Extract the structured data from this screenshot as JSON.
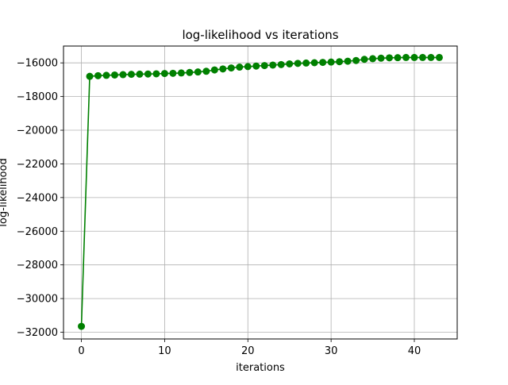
{
  "chart_data": {
    "type": "line",
    "title": "log-likelihood vs iterations",
    "xlabel": "iterations",
    "ylabel": "log-likelihood",
    "xlim": [
      -2.15,
      45.15
    ],
    "ylim": [
      -32400,
      -15000
    ],
    "xticks": [
      0,
      10,
      20,
      30,
      40
    ],
    "yticks": [
      -32000,
      -30000,
      -28000,
      -26000,
      -24000,
      -22000,
      -20000,
      -18000,
      -16000
    ],
    "grid": true,
    "legend": "none",
    "series": [
      {
        "color": "#008000",
        "marker": "circle",
        "x": [
          0,
          1,
          2,
          3,
          4,
          5,
          6,
          7,
          8,
          9,
          10,
          11,
          12,
          13,
          14,
          15,
          16,
          17,
          18,
          19,
          20,
          21,
          22,
          23,
          24,
          25,
          26,
          27,
          28,
          29,
          30,
          31,
          32,
          33,
          34,
          35,
          36,
          37,
          38,
          39,
          40,
          41,
          42,
          43
        ],
        "y": [
          -31650,
          -16800,
          -16760,
          -16740,
          -16720,
          -16700,
          -16680,
          -16670,
          -16660,
          -16650,
          -16630,
          -16620,
          -16600,
          -16570,
          -16540,
          -16500,
          -16420,
          -16360,
          -16300,
          -16250,
          -16220,
          -16190,
          -16160,
          -16130,
          -16100,
          -16060,
          -16030,
          -16010,
          -15990,
          -15970,
          -15950,
          -15930,
          -15900,
          -15860,
          -15790,
          -15750,
          -15720,
          -15700,
          -15690,
          -15680,
          -15680,
          -15680,
          -15680,
          -15680
        ]
      }
    ]
  }
}
